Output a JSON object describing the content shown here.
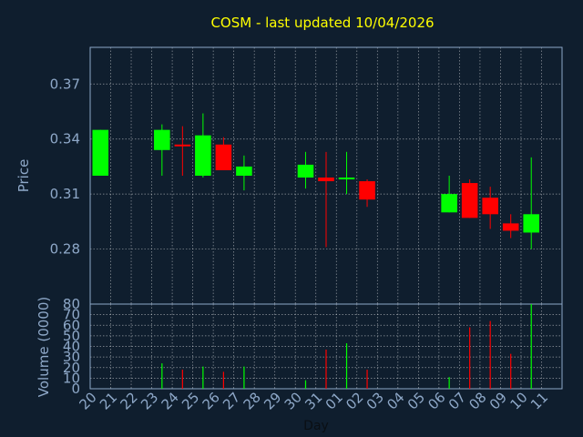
{
  "title": "COSM - last updated 10/04/2026",
  "colors": {
    "background": "#0f1e2e",
    "axis_text": "#8ea8c8",
    "title": "#ffff00",
    "up": "#00ff00",
    "down": "#ff0000",
    "grid": "#ffffff"
  },
  "chart_data": [
    {
      "type": "candlestick",
      "ylabel": "Price",
      "ylim": [
        0.25,
        0.39
      ],
      "yticks": [
        0.28,
        0.31,
        0.34,
        0.37
      ],
      "ytick_labels": [
        "0.28",
        "0.31",
        "0.34",
        "0.37"
      ],
      "grid": true,
      "categories": [
        "20",
        "21",
        "22",
        "23",
        "24",
        "25",
        "26",
        "27",
        "28",
        "29",
        "30",
        "31",
        "01",
        "02",
        "03",
        "04",
        "05",
        "06",
        "07",
        "08",
        "09",
        "10",
        "11"
      ],
      "ohlc": [
        {
          "day": "20",
          "open": 0.32,
          "high": 0.345,
          "low": 0.32,
          "close": 0.345
        },
        {
          "day": "23",
          "open": 0.334,
          "high": 0.348,
          "low": 0.32,
          "close": 0.345
        },
        {
          "day": "24",
          "open": 0.337,
          "high": 0.347,
          "low": 0.32,
          "close": 0.336
        },
        {
          "day": "25",
          "open": 0.32,
          "high": 0.354,
          "low": 0.319,
          "close": 0.342
        },
        {
          "day": "26",
          "open": 0.337,
          "high": 0.341,
          "low": 0.323,
          "close": 0.323
        },
        {
          "day": "27",
          "open": 0.32,
          "high": 0.331,
          "low": 0.312,
          "close": 0.325
        },
        {
          "day": "30",
          "open": 0.319,
          "high": 0.333,
          "low": 0.313,
          "close": 0.326
        },
        {
          "day": "31",
          "open": 0.319,
          "high": 0.333,
          "low": 0.281,
          "close": 0.317
        },
        {
          "day": "01",
          "open": 0.318,
          "high": 0.333,
          "low": 0.31,
          "close": 0.319
        },
        {
          "day": "02",
          "open": 0.317,
          "high": 0.318,
          "low": 0.303,
          "close": 0.307
        },
        {
          "day": "06",
          "open": 0.3,
          "high": 0.32,
          "low": 0.3,
          "close": 0.31
        },
        {
          "day": "07",
          "open": 0.316,
          "high": 0.318,
          "low": 0.297,
          "close": 0.297
        },
        {
          "day": "08",
          "open": 0.308,
          "high": 0.314,
          "low": 0.291,
          "close": 0.299
        },
        {
          "day": "09",
          "open": 0.294,
          "high": 0.299,
          "low": 0.286,
          "close": 0.29
        },
        {
          "day": "10",
          "open": 0.289,
          "high": 0.33,
          "low": 0.28,
          "close": 0.299
        }
      ]
    },
    {
      "type": "bar",
      "xlabel": "Day",
      "ylabel": "Volume (0000)",
      "ylim": [
        0,
        80
      ],
      "yticks": [
        0,
        10,
        20,
        30,
        40,
        50,
        60,
        70,
        80
      ],
      "ytick_labels": [
        "0",
        "10",
        "20",
        "30",
        "40",
        "50",
        "60",
        "70",
        "80"
      ],
      "grid": true,
      "categories": [
        "20",
        "21",
        "22",
        "23",
        "24",
        "25",
        "26",
        "27",
        "28",
        "29",
        "30",
        "31",
        "01",
        "02",
        "03",
        "04",
        "05",
        "06",
        "07",
        "08",
        "09",
        "10",
        "11"
      ],
      "bars": [
        {
          "day": "23",
          "value": 24,
          "direction": "up"
        },
        {
          "day": "24",
          "value": 18,
          "direction": "down"
        },
        {
          "day": "25",
          "value": 21,
          "direction": "up"
        },
        {
          "day": "26",
          "value": 16,
          "direction": "down"
        },
        {
          "day": "27",
          "value": 21,
          "direction": "up"
        },
        {
          "day": "30",
          "value": 8,
          "direction": "up"
        },
        {
          "day": "31",
          "value": 37,
          "direction": "down"
        },
        {
          "day": "01",
          "value": 43,
          "direction": "up"
        },
        {
          "day": "02",
          "value": 18,
          "direction": "down"
        },
        {
          "day": "06",
          "value": 11,
          "direction": "up"
        },
        {
          "day": "07",
          "value": 58,
          "direction": "down"
        },
        {
          "day": "08",
          "value": 64,
          "direction": "down"
        },
        {
          "day": "09",
          "value": 33,
          "direction": "down"
        },
        {
          "day": "10",
          "value": 80,
          "direction": "up"
        }
      ]
    }
  ]
}
